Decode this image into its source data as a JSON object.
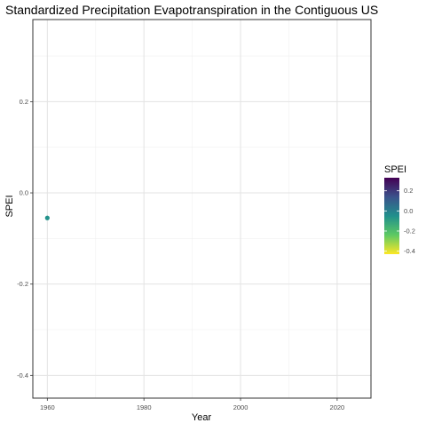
{
  "chart_data": {
    "type": "scatter",
    "title": "Standardized Precipitation Evapotranspiration in the Contiguous US",
    "xlabel": "Year",
    "ylabel": "SPEI",
    "x_ticks": [
      1960,
      1980,
      2000,
      2020
    ],
    "y_ticks": [
      -0.4,
      -0.2,
      0.0,
      0.2
    ],
    "y_tick_labels": [
      "-0.4",
      "-0.2",
      "0.0",
      "0.2"
    ],
    "xlim": [
      1957,
      2027
    ],
    "ylim": [
      -0.45,
      0.38
    ],
    "grid": true,
    "points": [
      {
        "x": 1960,
        "y": -0.055
      }
    ],
    "color_scale": {
      "title": "SPEI",
      "palette": "viridis",
      "min": -0.43,
      "max": 0.33,
      "ticks": [
        0.2,
        0.0,
        -0.2,
        -0.4
      ],
      "tick_labels": [
        "0.2",
        "0.0",
        "-0.2",
        "-0.4"
      ],
      "colors": [
        "#440154",
        "#3b528b",
        "#21908c",
        "#5dc963",
        "#fde725"
      ]
    },
    "legend_placement": "right"
  }
}
